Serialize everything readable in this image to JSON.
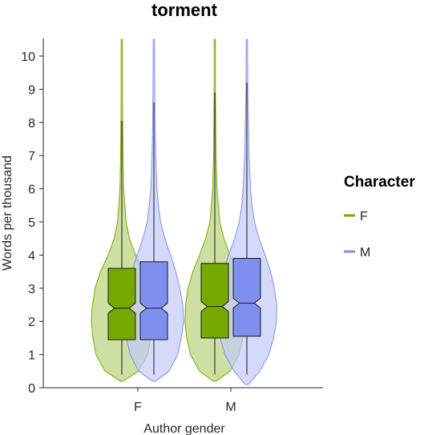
{
  "chart_data": {
    "type": "violin",
    "title": "torment",
    "xlabel": "Author gender",
    "ylabel": "Words per thousand",
    "ylim": [
      0,
      10.5
    ],
    "yticks": [
      0,
      1,
      2,
      3,
      4,
      5,
      6,
      7,
      8,
      9,
      10
    ],
    "categories": [
      "F",
      "M"
    ],
    "legend": {
      "title": "Character",
      "position": "right"
    },
    "series": [
      {
        "name": "F",
        "color": "#76A900",
        "fill": "#B9D27A",
        "groups": [
          {
            "category": "F",
            "whisker_min": 0.4,
            "q1": 1.45,
            "median": 2.4,
            "q3": 3.6,
            "whisker_max": 8.05,
            "notch_low": 2.25,
            "notch_high": 2.55,
            "max": 10.5,
            "min": 0.2,
            "density": [
              [
                0.2,
                0.05
              ],
              [
                0.5,
                0.55
              ],
              [
                1.0,
                0.85
              ],
              [
                1.5,
                0.95
              ],
              [
                2.0,
                1.0
              ],
              [
                2.4,
                0.98
              ],
              [
                3.0,
                0.88
              ],
              [
                3.5,
                0.7
              ],
              [
                4.0,
                0.45
              ],
              [
                4.5,
                0.25
              ],
              [
                5.0,
                0.14
              ],
              [
                6.0,
                0.06
              ],
              [
                7.0,
                0.04
              ],
              [
                8.0,
                0.03
              ],
              [
                9.0,
                0.02
              ],
              [
                10.5,
                0.02
              ]
            ]
          },
          {
            "category": "M",
            "whisker_min": 0.4,
            "q1": 1.5,
            "median": 2.45,
            "q3": 3.75,
            "whisker_max": 8.9,
            "notch_low": 2.3,
            "notch_high": 2.6,
            "max": 10.5,
            "min": 0.2,
            "density": [
              [
                0.2,
                0.05
              ],
              [
                0.5,
                0.5
              ],
              [
                1.0,
                0.8
              ],
              [
                1.5,
                0.92
              ],
              [
                2.0,
                0.98
              ],
              [
                2.5,
                0.96
              ],
              [
                3.0,
                0.88
              ],
              [
                3.5,
                0.72
              ],
              [
                4.0,
                0.5
              ],
              [
                4.5,
                0.3
              ],
              [
                5.0,
                0.16
              ],
              [
                6.0,
                0.07
              ],
              [
                7.0,
                0.04
              ],
              [
                8.0,
                0.03
              ],
              [
                9.0,
                0.02
              ],
              [
                10.5,
                0.02
              ]
            ]
          }
        ]
      },
      {
        "name": "M",
        "color": "#7F8FF0",
        "fill": "#C3CBF9",
        "groups": [
          {
            "category": "F",
            "whisker_min": 0.4,
            "q1": 1.45,
            "median": 2.4,
            "q3": 3.8,
            "whisker_max": 8.6,
            "notch_low": 2.25,
            "notch_high": 2.55,
            "max": 10.5,
            "min": 0.2,
            "density": [
              [
                0.2,
                0.05
              ],
              [
                0.5,
                0.5
              ],
              [
                1.0,
                0.78
              ],
              [
                1.5,
                0.9
              ],
              [
                2.0,
                0.98
              ],
              [
                2.5,
                0.95
              ],
              [
                3.0,
                0.85
              ],
              [
                3.5,
                0.72
              ],
              [
                4.0,
                0.55
              ],
              [
                4.5,
                0.36
              ],
              [
                5.0,
                0.22
              ],
              [
                5.5,
                0.15
              ],
              [
                6.0,
                0.1
              ],
              [
                7.0,
                0.06
              ],
              [
                8.0,
                0.04
              ],
              [
                9.0,
                0.03
              ],
              [
                10.5,
                0.02
              ]
            ]
          },
          {
            "category": "M",
            "whisker_min": 0.4,
            "q1": 1.55,
            "median": 2.55,
            "q3": 3.9,
            "whisker_max": 9.2,
            "notch_low": 2.4,
            "notch_high": 2.7,
            "max": 10.5,
            "min": 0.1,
            "density": [
              [
                0.1,
                0.05
              ],
              [
                0.5,
                0.42
              ],
              [
                1.0,
                0.72
              ],
              [
                1.5,
                0.88
              ],
              [
                2.0,
                0.97
              ],
              [
                2.5,
                0.98
              ],
              [
                3.0,
                0.9
              ],
              [
                3.5,
                0.78
              ],
              [
                4.0,
                0.6
              ],
              [
                4.5,
                0.4
              ],
              [
                5.0,
                0.25
              ],
              [
                5.5,
                0.17
              ],
              [
                6.0,
                0.12
              ],
              [
                7.0,
                0.07
              ],
              [
                8.0,
                0.05
              ],
              [
                9.0,
                0.03
              ],
              [
                10.5,
                0.02
              ]
            ]
          }
        ]
      }
    ]
  }
}
